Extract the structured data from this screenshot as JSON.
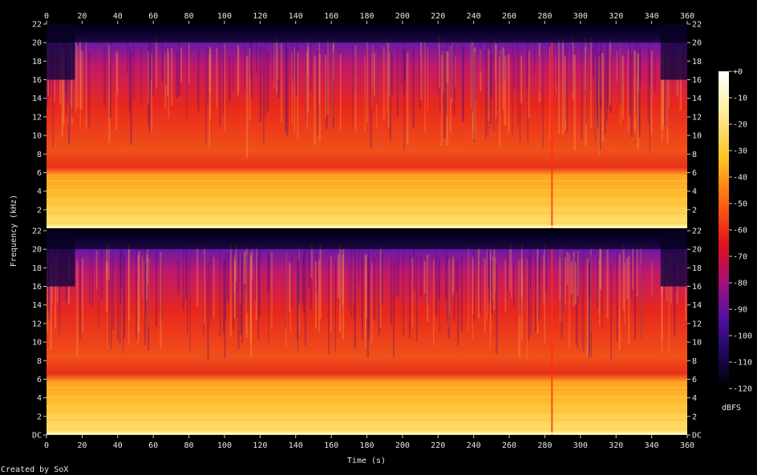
{
  "chart_data": {
    "type": "heatmap",
    "title": "",
    "xlabel": "Time (s)",
    "ylabel": "Frequency (kHz)",
    "colorbar_label": "dBFS",
    "credit": "Created by SoX",
    "x_ticks": [
      "0",
      "20",
      "40",
      "60",
      "80",
      "100",
      "120",
      "140",
      "160",
      "180",
      "200",
      "220",
      "240",
      "260",
      "280",
      "300",
      "320",
      "340",
      "360"
    ],
    "y_ticks_upper": [
      "2",
      "4",
      "6",
      "8",
      "10",
      "12",
      "14",
      "16",
      "18",
      "20",
      "22"
    ],
    "y_ticks_lower": [
      "DC",
      "2",
      "4",
      "6",
      "8",
      "10",
      "12",
      "14",
      "16",
      "18",
      "20",
      "22"
    ],
    "colorbar_ticks": [
      "+0",
      "-10",
      "-20",
      "-30",
      "-40",
      "-50",
      "-60",
      "-70",
      "-80",
      "-90",
      "-100",
      "-110",
      "-120"
    ],
    "xlim": [
      0,
      360
    ],
    "ylim_khz": [
      0,
      22
    ],
    "clim_dbfs": [
      -120,
      0
    ],
    "channels": 2,
    "approx_energy_profile": {
      "below_6khz_dbfs": -35,
      "6_to_20khz_dbfs": -60,
      "above_20khz_dbfs": -110,
      "quiet_intro_end_s": 16,
      "quiet_outro_start_s": 345,
      "transient_at_s": 284
    },
    "colors": {
      "background": "#000000",
      "low": "#000010",
      "mid_purple": "#5a1aa0",
      "mid_red": "#e8201c",
      "high_orange": "#ff8c10",
      "peak_yellow": "#ffe050"
    }
  }
}
